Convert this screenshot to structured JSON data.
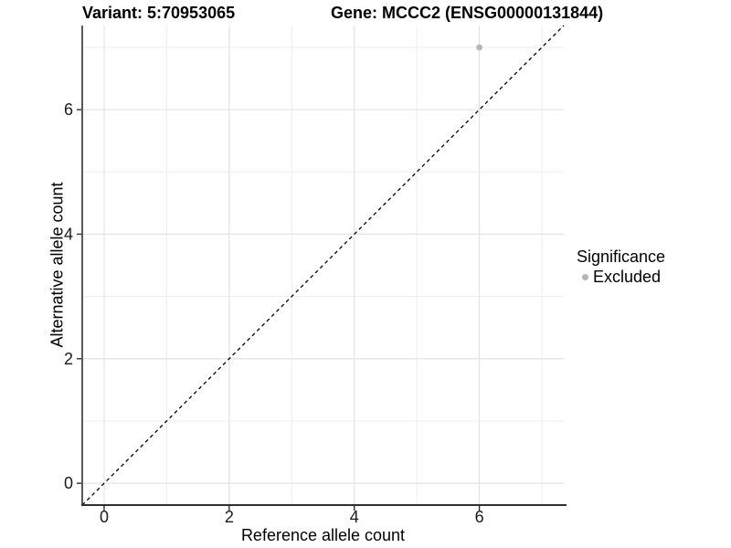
{
  "header": {
    "variant_title": "Variant: 5:70953065",
    "gene_title": "Gene: MCCC2 (ENSG00000131844)"
  },
  "chart_data": {
    "type": "scatter",
    "xlabel": "Reference allele count",
    "ylabel": "Alternative allele count",
    "xlim": [
      -0.35,
      7.35
    ],
    "ylim": [
      -0.35,
      7.35
    ],
    "x_ticks": [
      0,
      2,
      4,
      6
    ],
    "y_ticks": [
      0,
      2,
      4,
      6
    ],
    "x_minor_gridlines": [
      1,
      3,
      5,
      7
    ],
    "y_minor_gridlines": [
      1,
      3,
      5,
      7
    ],
    "grid": true,
    "points": [
      {
        "x": 6,
        "y": 7,
        "series": "Excluded"
      }
    ],
    "reference_line": {
      "type": "identity",
      "style": "dashed",
      "x1": -0.35,
      "y1": -0.35,
      "x2": 7.35,
      "y2": 7.35
    },
    "legend": {
      "position": "right",
      "title": "Significance",
      "items": [
        {
          "label": "Excluded",
          "color": "#b5b5b5"
        }
      ]
    },
    "colors": {
      "point": "#b5b5b5",
      "major_grid": "#e3e3e3",
      "minor_grid": "#ededed",
      "axis_line": "#2f2f2f",
      "tick_text": "#1a1a1a",
      "reference_line": "#000000"
    }
  }
}
